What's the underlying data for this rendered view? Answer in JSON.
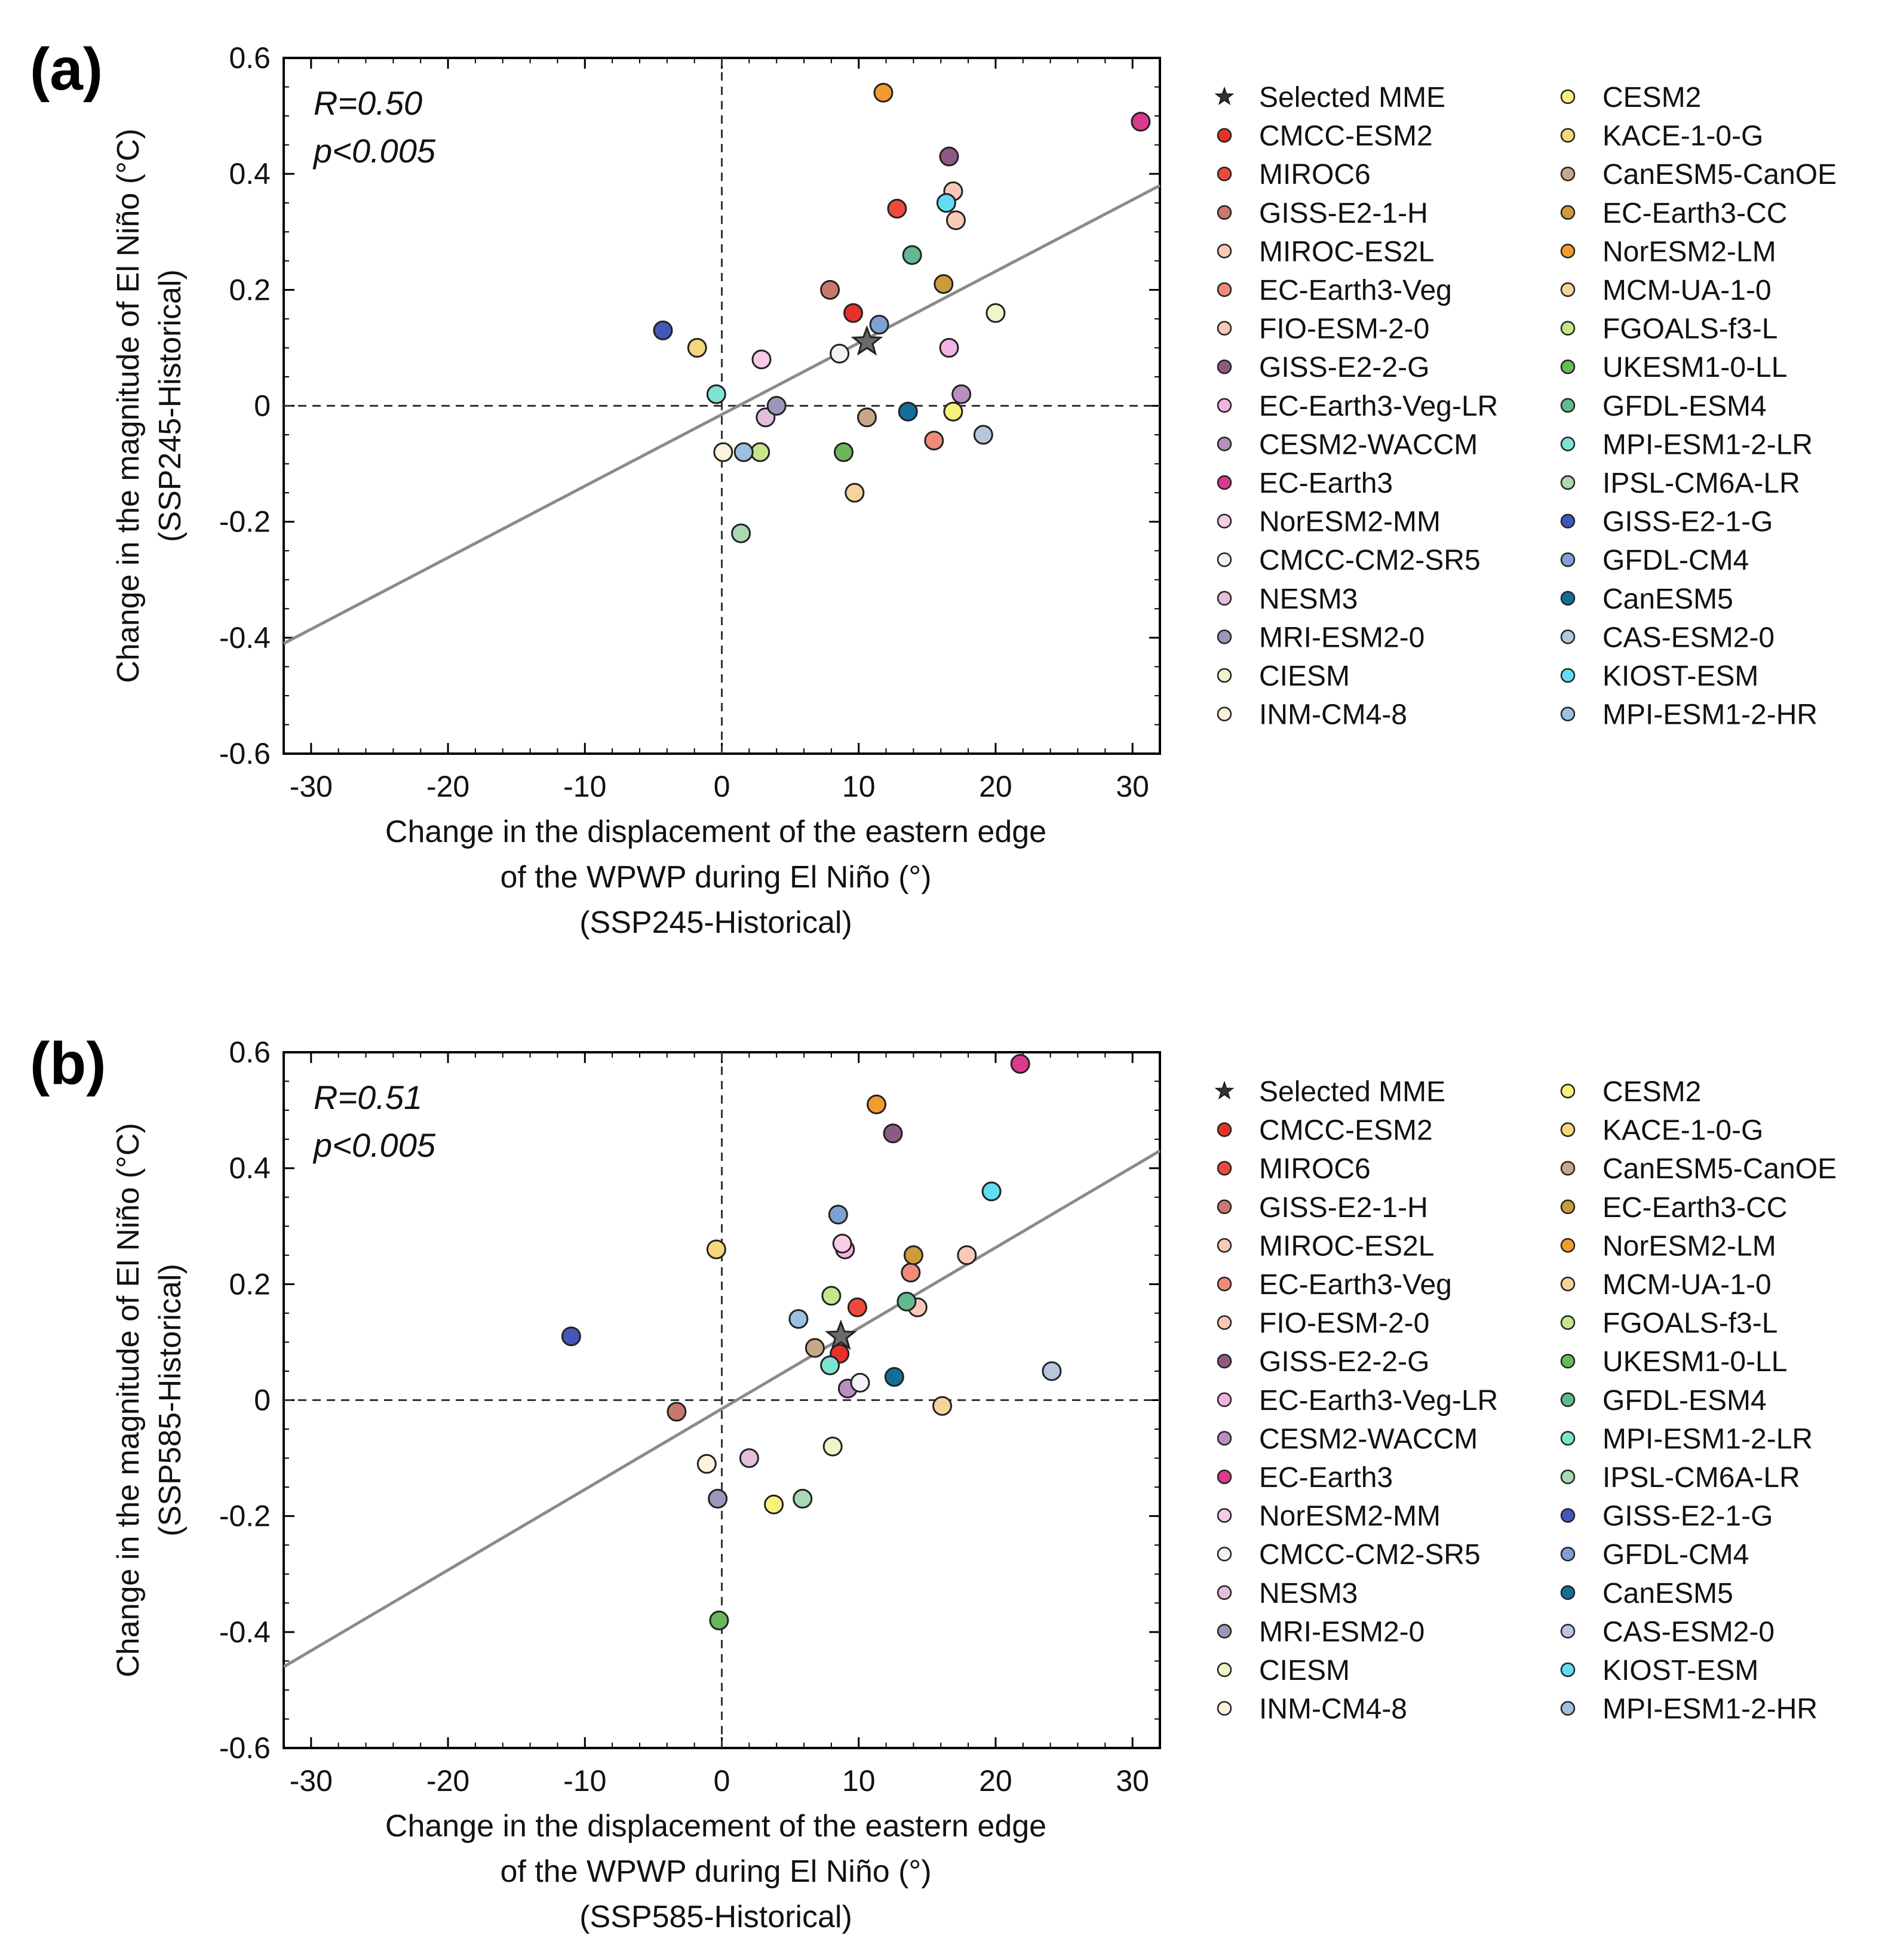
{
  "legend": [
    {
      "name": "Selected MME",
      "color": "#555555",
      "marker": "star"
    },
    {
      "name": "CMCC-ESM2",
      "color": "#e8312a"
    },
    {
      "name": "MIROC6",
      "color": "#ee4a3b"
    },
    {
      "name": "GISS-E2-1-H",
      "color": "#c9786c"
    },
    {
      "name": "MIROC-ES2L",
      "color": "#f9c9b8"
    },
    {
      "name": "EC-Earth3-Veg",
      "color": "#f28a7a"
    },
    {
      "name": "FIO-ESM-2-0",
      "color": "#fbc8b8"
    },
    {
      "name": "GISS-E2-2-G",
      "color": "#8e5a84"
    },
    {
      "name": "EC-Earth3-Veg-LR",
      "color": "#f3b3e2"
    },
    {
      "name": "CESM2-WACCM",
      "color": "#b88fbf"
    },
    {
      "name": "EC-Earth3",
      "color": "#d93a8d"
    },
    {
      "name": "NorESM2-MM",
      "color": "#f8cbe6"
    },
    {
      "name": "CMCC-CM2-SR5",
      "color": "#f3f3f7"
    },
    {
      "name": "NESM3",
      "color": "#e3bfdc"
    },
    {
      "name": "MRI-ESM2-0",
      "color": "#9c96b7"
    },
    {
      "name": "CIESM",
      "color": "#eff5c8"
    },
    {
      "name": "INM-CM4-8",
      "color": "#fdf3dd"
    },
    {
      "name": "CESM2",
      "color": "#f8f27a"
    },
    {
      "name": "KACE-1-0-G",
      "color": "#f6d77c"
    },
    {
      "name": "CanESM5-CanOE",
      "color": "#c6a889"
    },
    {
      "name": "EC-Earth3-CC",
      "color": "#cc9c3b"
    },
    {
      "name": "NorESM2-LM",
      "color": "#f49b2d"
    },
    {
      "name": "MCM-UA-1-0",
      "color": "#f5d49b"
    },
    {
      "name": "FGOALS-f3-L",
      "color": "#c8e58b"
    },
    {
      "name": "UKESM1-0-LL",
      "color": "#6bb85a"
    },
    {
      "name": "GFDL-ESM4",
      "color": "#63b98f"
    },
    {
      "name": "MPI-ESM1-2-LR",
      "color": "#7fe3d2"
    },
    {
      "name": "IPSL-CM6A-LR",
      "color": "#a9d8b3"
    },
    {
      "name": "GISS-E2-1-G",
      "color": "#4457b8"
    },
    {
      "name": "GFDL-CM4",
      "color": "#7ea1d3"
    },
    {
      "name": "CanESM5",
      "color": "#156e9a"
    },
    {
      "name": "CAS-ESM2-0",
      "color": "#b6c6dc"
    },
    {
      "name": "KIOST-ESM",
      "color": "#62dcf5"
    },
    {
      "name": "MPI-ESM1-2-HR",
      "color": "#9dbfe0"
    }
  ],
  "chart_data": [
    {
      "panel": "(a)",
      "type": "scatter",
      "stats": {
        "r": "R=0.50",
        "p": "p<0.005"
      },
      "ylabel_lines": [
        "Change in the magnitude of El Niño (°C)",
        "(SSP245-Historical)"
      ],
      "xlabel_lines": [
        "Change in the displacement of the eastern edge",
        "of the WPWP during El Niño (°)",
        "(SSP245-Historical)"
      ],
      "xlim": [
        -32,
        32
      ],
      "ylim": [
        -0.6,
        0.6
      ],
      "xticks": [
        -30,
        -20,
        -10,
        0,
        10,
        20,
        30
      ],
      "yticks": [
        -0.6,
        -0.4,
        -0.2,
        0,
        0.2,
        0.4,
        0.6
      ],
      "ytick_labels": [
        "-0.6",
        "-0.4",
        "-0.2",
        "0",
        "0.2",
        "0.4",
        "0.6"
      ],
      "fit_line": {
        "x": [
          -32,
          32
        ],
        "y": [
          -0.41,
          0.38
        ]
      },
      "points": [
        {
          "model": "CMCC-ESM2",
          "x": 9.6,
          "y": 0.16
        },
        {
          "model": "MIROC6",
          "x": 12.8,
          "y": 0.34
        },
        {
          "model": "GISS-E2-1-H",
          "x": 7.9,
          "y": 0.2
        },
        {
          "model": "MIROC-ES2L",
          "x": 17.1,
          "y": 0.32
        },
        {
          "model": "EC-Earth3-Veg",
          "x": 15.5,
          "y": -0.06
        },
        {
          "model": "FIO-ESM-2-0",
          "x": 16.9,
          "y": 0.37
        },
        {
          "model": "GISS-E2-2-G",
          "x": 16.6,
          "y": 0.43
        },
        {
          "model": "EC-Earth3-Veg-LR",
          "x": 16.6,
          "y": 0.1
        },
        {
          "model": "CESM2-WACCM",
          "x": 17.5,
          "y": 0.02
        },
        {
          "model": "EC-Earth3",
          "x": 30.6,
          "y": 0.49
        },
        {
          "model": "NorESM2-MM",
          "x": 2.9,
          "y": 0.08
        },
        {
          "model": "CMCC-CM2-SR5",
          "x": 8.6,
          "y": 0.09
        },
        {
          "model": "NESM3",
          "x": 3.2,
          "y": -0.02
        },
        {
          "model": "MRI-ESM2-0",
          "x": 4.0,
          "y": 0.0
        },
        {
          "model": "CIESM",
          "x": 20.0,
          "y": 0.16
        },
        {
          "model": "INM-CM4-8",
          "x": 0.1,
          "y": -0.08
        },
        {
          "model": "CESM2",
          "x": 16.9,
          "y": -0.01
        },
        {
          "model": "KACE-1-0-G",
          "x": -1.8,
          "y": 0.1
        },
        {
          "model": "CanESM5-CanOE",
          "x": 10.6,
          "y": -0.02
        },
        {
          "model": "EC-Earth3-CC",
          "x": 16.2,
          "y": 0.21
        },
        {
          "model": "NorESM2-LM",
          "x": 11.8,
          "y": 0.54
        },
        {
          "model": "FGOALS-f3-L",
          "x": 2.8,
          "y": -0.08
        },
        {
          "model": "UKESM1-0-LL",
          "x": 8.9,
          "y": -0.08
        },
        {
          "model": "GFDL-ESM4",
          "x": 13.9,
          "y": 0.26
        },
        {
          "model": "MPI-ESM1-2-LR",
          "x": -0.4,
          "y": 0.02
        },
        {
          "model": "IPSL-CM6A-LR",
          "x": 1.4,
          "y": -0.22
        },
        {
          "model": "GISS-E2-1-G",
          "x": -4.3,
          "y": 0.13
        },
        {
          "model": "GFDL-CM4",
          "x": 11.5,
          "y": 0.14
        },
        {
          "model": "CanESM5",
          "x": 13.6,
          "y": -0.01
        },
        {
          "model": "CAS-ESM2-0",
          "x": 19.1,
          "y": -0.05
        },
        {
          "model": "KIOST-ESM",
          "x": 16.4,
          "y": 0.35
        },
        {
          "model": "MPI-ESM1-2-HR",
          "x": 1.6,
          "y": -0.08
        },
        {
          "model": "MCM-UA-1-0",
          "x": 9.7,
          "y": -0.15
        }
      ],
      "mme": {
        "x": 10.6,
        "y": 0.11
      }
    },
    {
      "panel": "(b)",
      "type": "scatter",
      "stats": {
        "r": "R=0.51",
        "p": "p<0.005"
      },
      "ylabel_lines": [
        "Change in the magnitude of El Niño (°C)",
        "(SSP585-Historical)"
      ],
      "xlabel_lines": [
        "Change in the displacement of the eastern edge",
        "of the WPWP during El Niño (°)",
        "(SSP585-Historical)"
      ],
      "xlim": [
        -32,
        32
      ],
      "ylim": [
        -0.6,
        0.6
      ],
      "xticks": [
        -30,
        -20,
        -10,
        0,
        10,
        20,
        30
      ],
      "yticks": [
        -0.6,
        -0.4,
        -0.2,
        0,
        0.2,
        0.4,
        0.6
      ],
      "ytick_labels": [
        "-0.6",
        "-0.4",
        "-0.2",
        "0",
        "0.2",
        "0.4",
        "0.6"
      ],
      "fit_line": {
        "x": [
          -32,
          32
        ],
        "y": [
          -0.46,
          0.43
        ]
      },
      "points": [
        {
          "model": "CMCC-ESM2",
          "x": 8.6,
          "y": 0.08
        },
        {
          "model": "MIROC6",
          "x": 9.9,
          "y": 0.16
        },
        {
          "model": "GISS-E2-1-H",
          "x": -3.3,
          "y": -0.02
        },
        {
          "model": "MIROC-ES2L",
          "x": 14.3,
          "y": 0.16
        },
        {
          "model": "EC-Earth3-Veg",
          "x": 13.8,
          "y": 0.22
        },
        {
          "model": "FIO-ESM-2-0",
          "x": 17.9,
          "y": 0.25
        },
        {
          "model": "GISS-E2-2-G",
          "x": 12.5,
          "y": 0.46
        },
        {
          "model": "EC-Earth3-Veg-LR",
          "x": 9.0,
          "y": 0.26
        },
        {
          "model": "CESM2-WACCM",
          "x": 9.2,
          "y": 0.02
        },
        {
          "model": "EC-Earth3",
          "x": 21.8,
          "y": 0.58
        },
        {
          "model": "NorESM2-MM",
          "x": 8.8,
          "y": 0.27
        },
        {
          "model": "CMCC-CM2-SR5",
          "x": 10.1,
          "y": 0.03
        },
        {
          "model": "NESM3",
          "x": 2.0,
          "y": -0.1
        },
        {
          "model": "MRI-ESM2-0",
          "x": -0.3,
          "y": -0.17
        },
        {
          "model": "CIESM",
          "x": 8.1,
          "y": -0.08
        },
        {
          "model": "INM-CM4-8",
          "x": -1.1,
          "y": -0.11
        },
        {
          "model": "CESM2",
          "x": 3.8,
          "y": -0.18
        },
        {
          "model": "KACE-1-0-G",
          "x": -0.4,
          "y": 0.26
        },
        {
          "model": "CanESM5-CanOE",
          "x": 6.8,
          "y": 0.09
        },
        {
          "model": "EC-Earth3-CC",
          "x": 14.0,
          "y": 0.25
        },
        {
          "model": "NorESM2-LM",
          "x": 11.3,
          "y": 0.51
        },
        {
          "model": "MCM-UA-1-0",
          "x": 16.1,
          "y": -0.01
        },
        {
          "model": "FGOALS-f3-L",
          "x": 8.0,
          "y": 0.18
        },
        {
          "model": "UKESM1-0-LL",
          "x": -0.2,
          "y": -0.38
        },
        {
          "model": "GFDL-ESM4",
          "x": 13.5,
          "y": 0.17
        },
        {
          "model": "MPI-ESM1-2-LR",
          "x": 7.9,
          "y": 0.06
        },
        {
          "model": "IPSL-CM6A-LR",
          "x": 5.9,
          "y": -0.17
        },
        {
          "model": "GISS-E2-1-G",
          "x": -11.0,
          "y": 0.11
        },
        {
          "model": "GFDL-CM4",
          "x": 8.5,
          "y": 0.32
        },
        {
          "model": "CanESM5",
          "x": 12.6,
          "y": 0.04
        },
        {
          "model": "CAS-ESM2-0",
          "x": 24.1,
          "y": 0.05
        },
        {
          "model": "KIOST-ESM",
          "x": 19.7,
          "y": 0.36
        },
        {
          "model": "MPI-ESM1-2-HR",
          "x": 5.6,
          "y": 0.14
        }
      ],
      "mme": {
        "x": 8.7,
        "y": 0.11
      }
    }
  ]
}
